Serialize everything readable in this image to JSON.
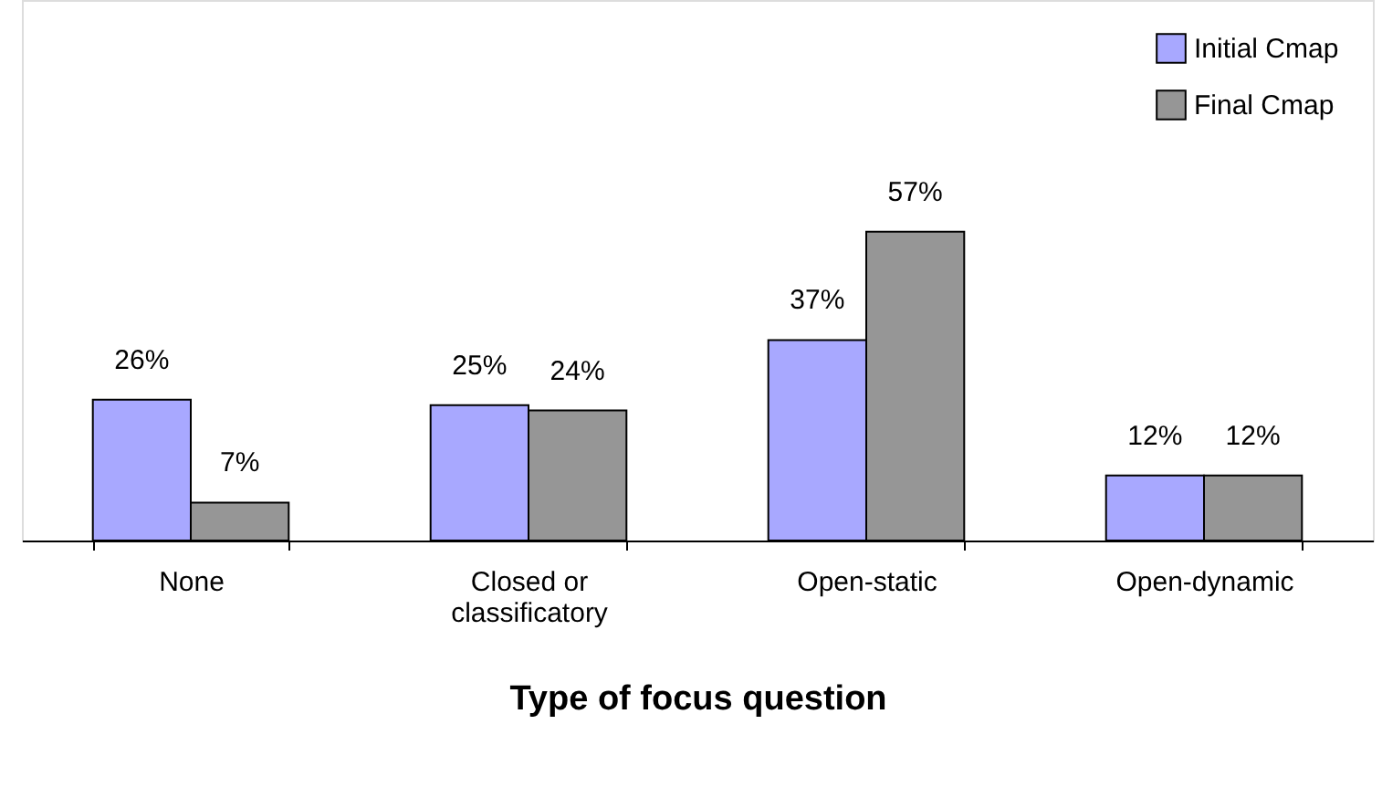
{
  "chart_data": {
    "type": "bar",
    "xlabel": "Type of focus question",
    "categories": [
      "None",
      "Closed or classificatory",
      "Open-static",
      "Open-dynamic"
    ],
    "series": [
      {
        "name": "Initial Cmap",
        "color": "#a8a8ff",
        "values": [
          26,
          25,
          37,
          12
        ],
        "value_labels": [
          "26%",
          "25%",
          "37%",
          "12%"
        ]
      },
      {
        "name": "Final Cmap",
        "color": "#969696",
        "values": [
          7,
          24,
          57,
          12
        ],
        "value_labels": [
          "7%",
          "24%",
          "57%",
          "12%"
        ]
      }
    ],
    "tick_labels": "x",
    "legend": "top right",
    "grid": false
  }
}
